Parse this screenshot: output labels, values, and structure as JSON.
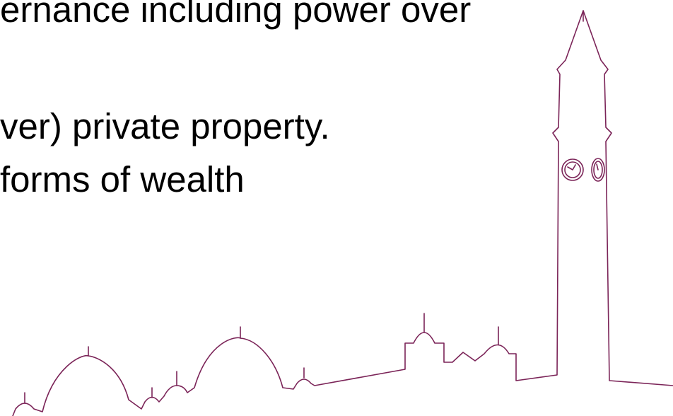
{
  "text": {
    "lines": [
      "ernance including power over",
      "ver) private property.",
      "forms of wealth"
    ]
  }
}
